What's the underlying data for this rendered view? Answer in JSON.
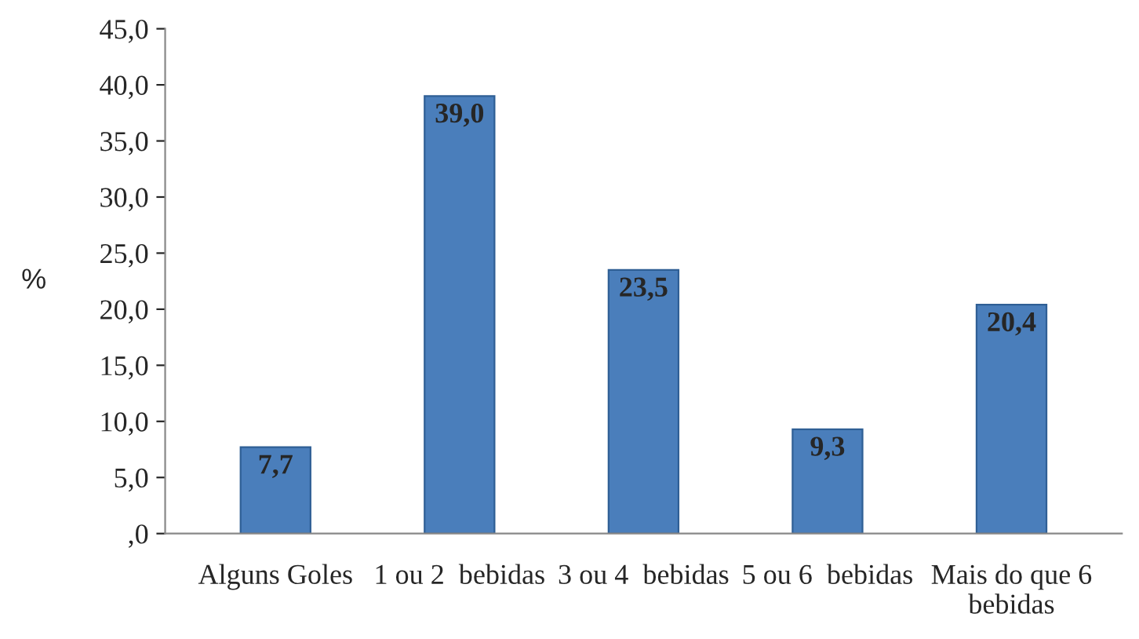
{
  "chart_data": {
    "type": "bar",
    "ylabel": "%",
    "categories": [
      "Alguns Goles",
      "1 ou 2  bebidas",
      "3 ou 4  bebidas",
      "5 ou 6  bebidas",
      "Mais do que 6\nbebidas"
    ],
    "values": [
      7.7,
      39.0,
      23.5,
      9.3,
      20.4
    ],
    "value_labels": [
      "7,7",
      "39,0",
      "23,5",
      "9,3",
      "20,4"
    ],
    "color": "#4a7ebb",
    "ylim": [
      0,
      45
    ],
    "yticks": [
      {
        "value": 0,
        "label": ",0"
      },
      {
        "value": 5,
        "label": "5,0"
      },
      {
        "value": 10,
        "label": "10,0"
      },
      {
        "value": 15,
        "label": "15,0"
      },
      {
        "value": 20,
        "label": "20,0"
      },
      {
        "value": 25,
        "label": "25,0"
      },
      {
        "value": 30,
        "label": "30,0"
      },
      {
        "value": 35,
        "label": "35,0"
      },
      {
        "value": 40,
        "label": "40,0"
      },
      {
        "value": 45,
        "label": "45,0"
      }
    ],
    "grid": false,
    "legend": false
  }
}
